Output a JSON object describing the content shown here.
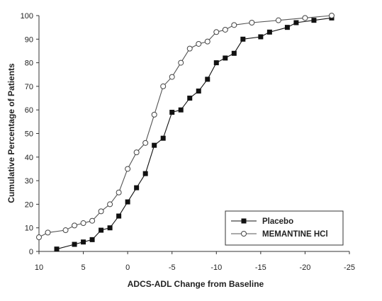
{
  "chart_data": {
    "type": "line",
    "xlabel": "ADCS-ADL Change from Baseline",
    "ylabel": "Cumulative Percentage of Patients",
    "xlim": [
      10,
      -25
    ],
    "ylim": [
      0,
      100
    ],
    "x_ticks": [
      10,
      5,
      0,
      -5,
      -10,
      -15,
      -20,
      -25
    ],
    "y_ticks": [
      0,
      10,
      20,
      30,
      40,
      50,
      60,
      70,
      80,
      90,
      100
    ],
    "grid": false,
    "legend_position": "bottom-right",
    "series": [
      {
        "name": "Placebo",
        "marker": "filled-square",
        "color": "#111111",
        "points": [
          [
            8,
            1
          ],
          [
            6,
            3
          ],
          [
            5,
            4
          ],
          [
            4,
            5
          ],
          [
            3,
            9
          ],
          [
            2,
            10
          ],
          [
            1,
            15
          ],
          [
            0,
            21
          ],
          [
            -1,
            27
          ],
          [
            -2,
            33
          ],
          [
            -3,
            45
          ],
          [
            -4,
            48
          ],
          [
            -5,
            59
          ],
          [
            -6,
            60
          ],
          [
            -7,
            65
          ],
          [
            -8,
            68
          ],
          [
            -9,
            73
          ],
          [
            -10,
            80
          ],
          [
            -11,
            82
          ],
          [
            -12,
            84
          ],
          [
            -13,
            90
          ],
          [
            -15,
            91
          ],
          [
            -16,
            93
          ],
          [
            -18,
            95
          ],
          [
            -19,
            97
          ],
          [
            -21,
            98
          ],
          [
            -23,
            99
          ]
        ]
      },
      {
        "name": "MEMANTINE HCl",
        "marker": "open-circle",
        "color": "#555555",
        "points": [
          [
            10,
            6
          ],
          [
            9,
            8
          ],
          [
            7,
            9
          ],
          [
            6,
            11
          ],
          [
            5,
            12
          ],
          [
            4,
            13
          ],
          [
            3,
            17
          ],
          [
            2,
            20
          ],
          [
            1,
            25
          ],
          [
            0,
            35
          ],
          [
            -1,
            42
          ],
          [
            -2,
            46
          ],
          [
            -3,
            58
          ],
          [
            -4,
            70
          ],
          [
            -5,
            74
          ],
          [
            -6,
            80
          ],
          [
            -7,
            86
          ],
          [
            -8,
            88
          ],
          [
            -9,
            89
          ],
          [
            -10,
            93
          ],
          [
            -11,
            94
          ],
          [
            -12,
            96
          ],
          [
            -14,
            97
          ],
          [
            -17,
            98
          ],
          [
            -20,
            99
          ],
          [
            -23,
            100
          ]
        ]
      }
    ]
  }
}
